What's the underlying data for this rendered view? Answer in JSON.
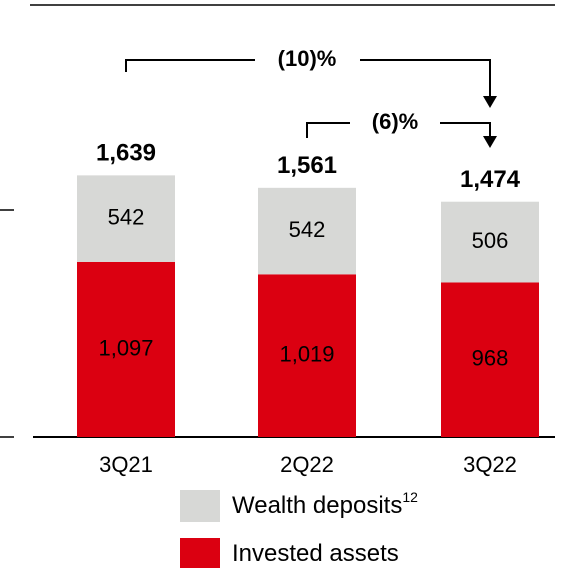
{
  "chart_data": {
    "type": "stacked_bar",
    "categories": [
      "3Q21",
      "2Q22",
      "3Q22"
    ],
    "series": [
      {
        "name": "Invested assets",
        "color": "#db0011",
        "values": [
          1097,
          1019,
          968
        ],
        "value_labels": [
          "1,097",
          "1,019",
          "968"
        ]
      },
      {
        "name": "Wealth deposits",
        "footnote": "12",
        "color": "#d7d8d6",
        "values": [
          542,
          542,
          506
        ],
        "value_labels": [
          "542",
          "542",
          "506"
        ]
      }
    ],
    "totals": [
      1639,
      1561,
      1474
    ],
    "total_labels": [
      "1,639",
      "1,561",
      "1,474"
    ],
    "ylim": [
      0,
      2700
    ],
    "annotations": [
      "(10)%",
      "(6)%"
    ]
  }
}
